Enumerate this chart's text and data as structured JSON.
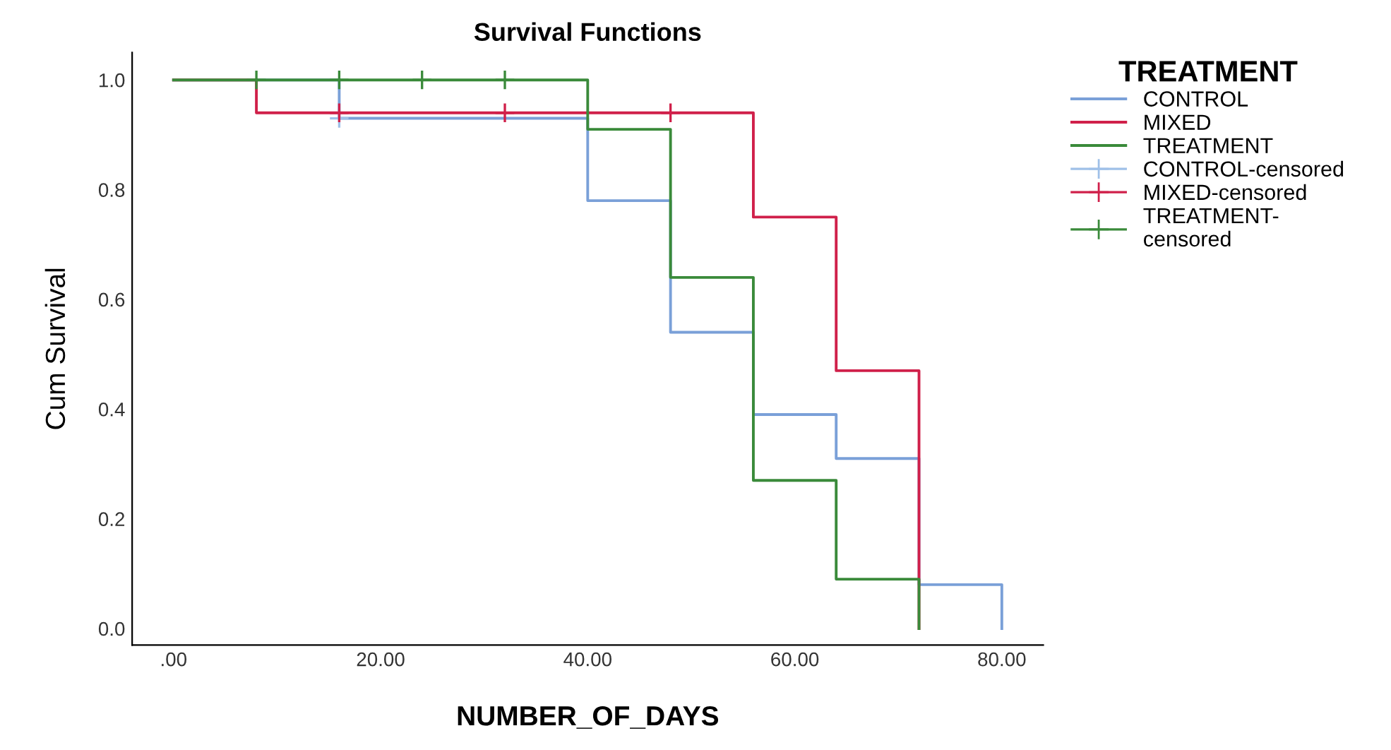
{
  "chart_data": {
    "type": "step",
    "title": "Survival Functions",
    "xlabel": "NUMBER_OF_DAYS",
    "ylabel": "Cum Survival",
    "legend_title": "TREATMENT",
    "legend": "right",
    "xlim": [
      -4,
      84
    ],
    "ylim": [
      -0.03,
      1.05
    ],
    "xticks": [
      {
        "value": 0,
        "label": ".00"
      },
      {
        "value": 20,
        "label": "20.00"
      },
      {
        "value": 40,
        "label": "40.00"
      },
      {
        "value": 60,
        "label": "60.00"
      },
      {
        "value": 80,
        "label": "80.00"
      }
    ],
    "yticks": [
      {
        "value": 0,
        "label": "0.0"
      },
      {
        "value": 0.2,
        "label": "0.2"
      },
      {
        "value": 0.4,
        "label": "0.4"
      },
      {
        "value": 0.6,
        "label": "0.6"
      },
      {
        "value": 0.8,
        "label": "0.8"
      },
      {
        "value": 1,
        "label": "1.0"
      }
    ],
    "grid": false,
    "series": [
      {
        "name": "CONTROL",
        "color": "#7aa0d8",
        "x": [
          0,
          16,
          40,
          48,
          56,
          64,
          72,
          80
        ],
        "values": [
          1,
          0.93,
          0.78,
          0.54,
          0.39,
          0.31,
          0.08,
          0
        ]
      },
      {
        "name": "MIXED",
        "color": "#d0204a",
        "x": [
          0,
          8,
          56,
          64,
          72
        ],
        "values": [
          1,
          0.94,
          0.75,
          0.47,
          0
        ]
      },
      {
        "name": "TREATMENT",
        "color": "#3a8a3a",
        "x": [
          0,
          40,
          48,
          56,
          64,
          72
        ],
        "values": [
          1,
          0.91,
          0.64,
          0.27,
          0.09,
          0
        ]
      },
      {
        "name": "CONTROL-censored",
        "color": "#9fc0e8",
        "type": "scatter",
        "marker": "cross",
        "x": [
          16
        ],
        "values": [
          0.93
        ]
      },
      {
        "name": "MIXED-censored",
        "color": "#d0204a",
        "type": "scatter",
        "marker": "cross",
        "x": [
          16,
          32,
          48
        ],
        "values": [
          0.94,
          0.94,
          0.94
        ]
      },
      {
        "name": "TREATMENT-\ncensored",
        "color": "#3a8a3a",
        "type": "scatter",
        "marker": "cross",
        "x": [
          8,
          16,
          24,
          32
        ],
        "values": [
          1,
          1,
          1,
          1
        ]
      }
    ]
  }
}
